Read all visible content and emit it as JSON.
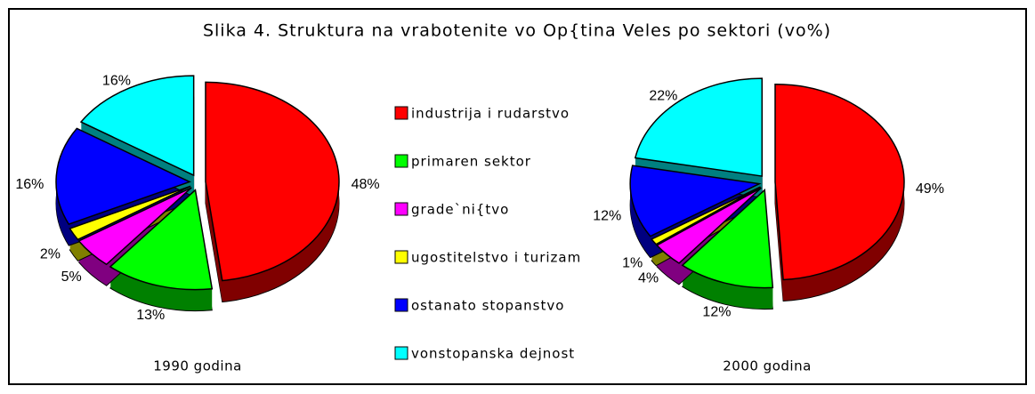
{
  "title": "Slika 4. Struktura na vrabotenite vo Op{tina Veles po sektori (vo%)",
  "legend": {
    "names": [
      "industrija i rudarstvo",
      "primaren sektor",
      "grade`ni{tvo",
      "ugostitelstvo i turizam",
      "ostanato stopanstvo",
      "vonstopanska dejnost"
    ],
    "colors": [
      "#ff0000",
      "#00ff00",
      "#ff00ff",
      "#ffff00",
      "#0000ff",
      "#00ffff"
    ]
  },
  "chart_data": [
    {
      "type": "pie",
      "label": "1990 godina",
      "values": [
        48,
        13,
        5,
        2,
        16,
        16
      ],
      "value_labels": [
        "48%",
        "13%",
        "5%",
        "2%",
        "16%",
        "16%"
      ]
    },
    {
      "type": "pie",
      "label": "2000 godina",
      "values": [
        49,
        12,
        4,
        1,
        12,
        22
      ],
      "value_labels": [
        "49%",
        "12%",
        "4%",
        "1%",
        "12%",
        "22%"
      ]
    }
  ]
}
